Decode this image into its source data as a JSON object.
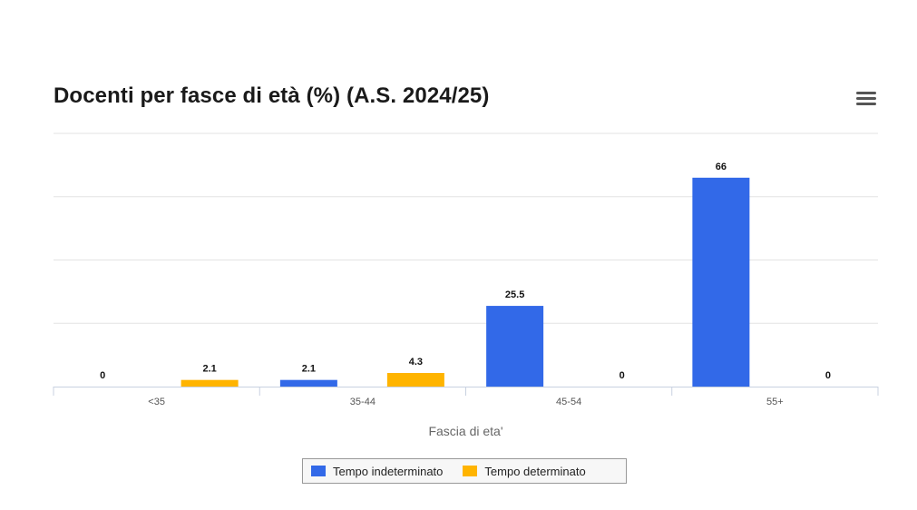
{
  "chart_data": {
    "type": "bar",
    "title": "Docenti per fasce di età (%) (A.S. 2024/25)",
    "xlabel": "Fascia di eta'",
    "ylabel": "",
    "categories": [
      "<35",
      "35-44",
      "45-54",
      "55+"
    ],
    "series": [
      {
        "name": "Tempo indeterminato",
        "color": "#3269e8",
        "values": [
          0,
          2.1,
          25.5,
          66
        ]
      },
      {
        "name": "Tempo determinato",
        "color": "#ffb400",
        "values": [
          2.1,
          4.3,
          0,
          0
        ]
      }
    ],
    "ylim": [
      0,
      80
    ],
    "grid": true,
    "legend_position": "bottom",
    "data_labels": true
  },
  "ui": {
    "menu_icon": "hamburger-menu-icon"
  }
}
